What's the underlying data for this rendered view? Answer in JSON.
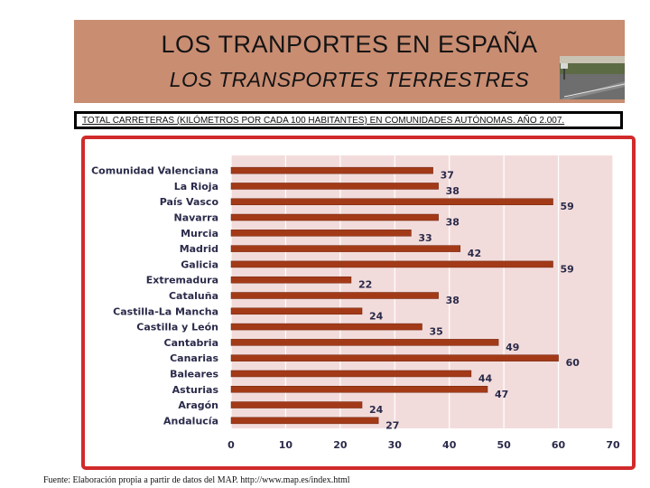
{
  "header": {
    "title": "LOS TRANPORTES EN ESPAÑA",
    "subtitle": "LOS TRANSPORTES TERRESTRES"
  },
  "caption": "TOTAL CARRETERAS (KILÓMETROS POR CADA 100 HABITANTES) EN COMUNIDADES AUTÓNOMAS. AÑO 2.007.",
  "source": "Fuente: Elaboración propia a partir de datos del MAP. http://www.map.es/index.html",
  "colors": {
    "header_bg": "#c98d72",
    "bar": "#a33a17",
    "plot_bg": "#f2dcdb",
    "frame": "#d12a2a",
    "label_text": "#2a2a4a"
  },
  "chart_data": {
    "type": "bar",
    "orientation": "horizontal",
    "title": "",
    "xlabel": "",
    "ylabel": "",
    "xlim": [
      0,
      70
    ],
    "x_ticks": [
      0,
      10,
      20,
      30,
      40,
      50,
      60,
      70
    ],
    "grid": true,
    "categories": [
      "Comunidad Valenciana",
      "La Rioja",
      "País Vasco",
      "Navarra",
      "Murcia",
      "Madrid",
      "Galicia",
      "Extremadura",
      "Cataluña",
      "Castilla-La Mancha",
      "Castilla y León",
      "Cantabria",
      "Canarias",
      "Baleares",
      "Asturias",
      "Aragón",
      "Andalucía"
    ],
    "values": [
      37,
      38,
      59,
      38,
      33,
      42,
      59,
      22,
      38,
      24,
      35,
      49,
      60,
      44,
      47,
      24,
      27
    ]
  }
}
